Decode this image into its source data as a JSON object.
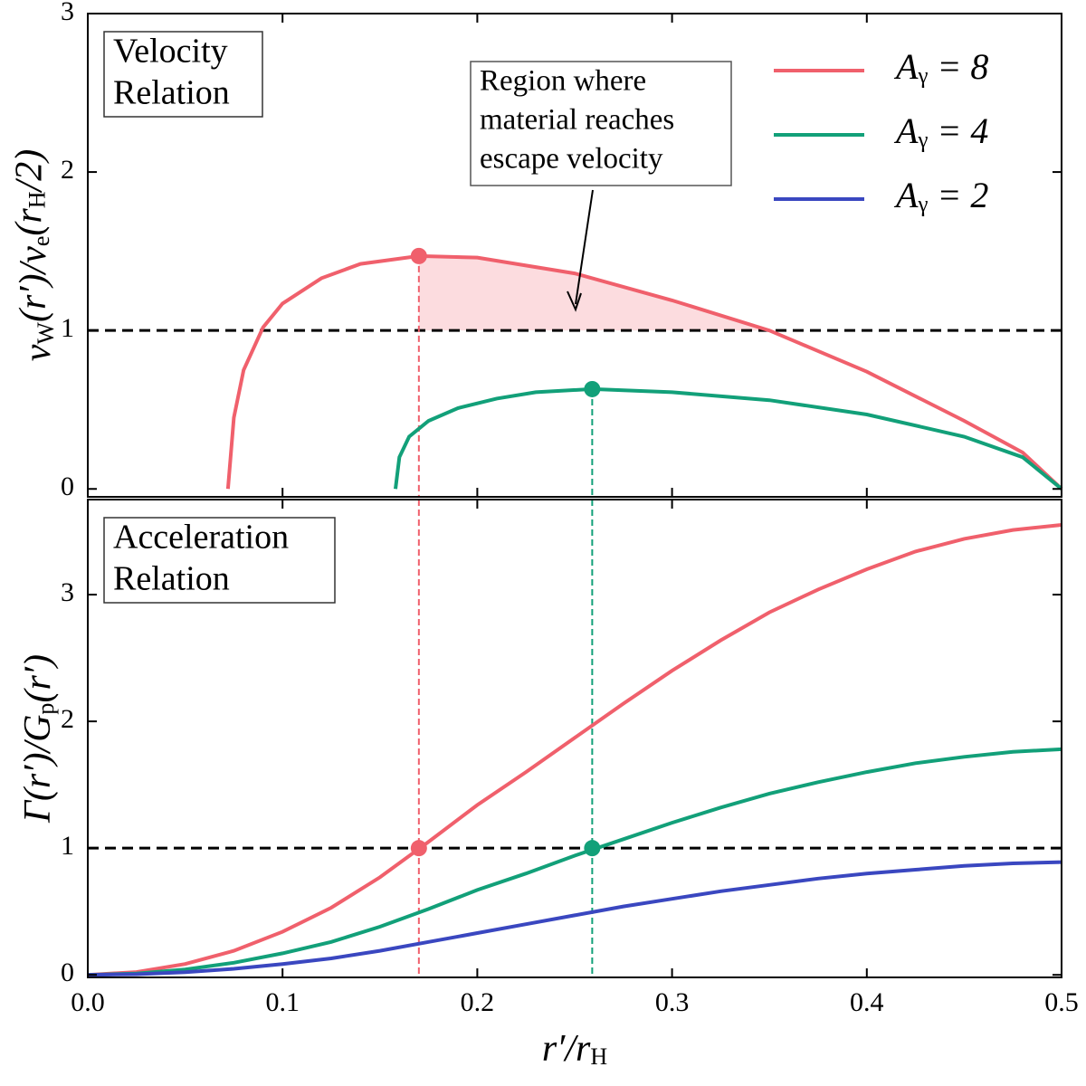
{
  "chart_data": [
    {
      "type": "line",
      "ylabel": "v_{W}(r′)/v_{e}(r_{H}/2)",
      "box_text": [
        "Velocity",
        "Relation"
      ],
      "annotation": [
        "Region where",
        "material reaches",
        "escape velocity"
      ],
      "xlim": [
        0,
        0.5
      ],
      "xticks": [
        0,
        0.1,
        0.2,
        0.3,
        0.4,
        0.5
      ],
      "ylim": [
        -0.05,
        3
      ],
      "yticks": [
        0,
        1,
        2,
        3
      ],
      "hline": 1,
      "series": [
        {
          "color": "#f0606c",
          "x": [
            0.072,
            0.075,
            0.08,
            0.09,
            0.1,
            0.12,
            0.14,
            0.17,
            0.2,
            0.25,
            0.3,
            0.35,
            0.4,
            0.45,
            0.48,
            0.5
          ],
          "values": [
            0,
            0.45,
            0.75,
            1.02,
            1.17,
            1.33,
            1.42,
            1.47,
            1.46,
            1.36,
            1.19,
            1.0,
            0.74,
            0.43,
            0.23,
            0
          ]
        },
        {
          "color": "#12a079",
          "x": [
            0.158,
            0.16,
            0.165,
            0.175,
            0.19,
            0.21,
            0.23,
            0.259,
            0.3,
            0.35,
            0.4,
            0.45,
            0.48,
            0.5
          ],
          "values": [
            0,
            0.2,
            0.33,
            0.43,
            0.51,
            0.57,
            0.61,
            0.63,
            0.61,
            0.56,
            0.47,
            0.33,
            0.2,
            0
          ]
        }
      ],
      "markers": [
        {
          "x": 0.17,
          "y": 1.47,
          "color": "#f0606c"
        },
        {
          "x": 0.259,
          "y": 0.63,
          "color": "#12a079"
        }
      ],
      "shade": {
        "series": 0,
        "from": 0.17,
        "to": 0.35,
        "base": 1,
        "color": "#fcdcdf"
      }
    },
    {
      "type": "line",
      "ylabel": "Γ(r′)/G_{p}(r′)",
      "xlabel": "r′/r_{H}",
      "box_text": [
        "Acceleration",
        "Relation"
      ],
      "xlim": [
        0,
        0.5
      ],
      "xticks": [
        {
          "value": 0,
          "label": "0.0"
        },
        0.1,
        0.2,
        0.3,
        0.4,
        0.5
      ],
      "ylim": [
        -0.02,
        3.75
      ],
      "yticks": [
        0,
        1,
        2,
        3
      ],
      "hline": 1,
      "x": [
        0,
        0.025,
        0.05,
        0.075,
        0.1,
        0.125,
        0.15,
        0.175,
        0.2,
        0.225,
        0.25,
        0.275,
        0.3,
        0.325,
        0.35,
        0.375,
        0.4,
        0.425,
        0.45,
        0.475,
        0.5
      ],
      "series": [
        {
          "name": "A_{γ} = 8",
          "color": "#f0606c",
          "values": [
            0,
            0.022,
            0.086,
            0.19,
            0.34,
            0.53,
            0.77,
            1.05,
            1.34,
            1.6,
            1.87,
            2.14,
            2.4,
            2.64,
            2.86,
            3.04,
            3.2,
            3.34,
            3.44,
            3.51,
            3.55
          ]
        },
        {
          "name": "A_{γ} = 4",
          "color": "#12a079",
          "values": [
            0,
            0.011,
            0.043,
            0.096,
            0.17,
            0.26,
            0.38,
            0.52,
            0.67,
            0.8,
            0.94,
            1.07,
            1.2,
            1.32,
            1.43,
            1.52,
            1.6,
            1.67,
            1.72,
            1.76,
            1.78
          ]
        },
        {
          "name": "A_{γ} = 2",
          "color": "#3a47c0",
          "values": [
            0,
            0.005,
            0.021,
            0.048,
            0.086,
            0.13,
            0.19,
            0.26,
            0.33,
            0.4,
            0.47,
            0.54,
            0.6,
            0.66,
            0.71,
            0.76,
            0.8,
            0.83,
            0.86,
            0.88,
            0.89
          ]
        }
      ],
      "markers": [
        {
          "x": 0.17,
          "y": 1,
          "color": "#f0606c"
        },
        {
          "x": 0.259,
          "y": 1,
          "color": "#12a079"
        }
      ]
    }
  ]
}
